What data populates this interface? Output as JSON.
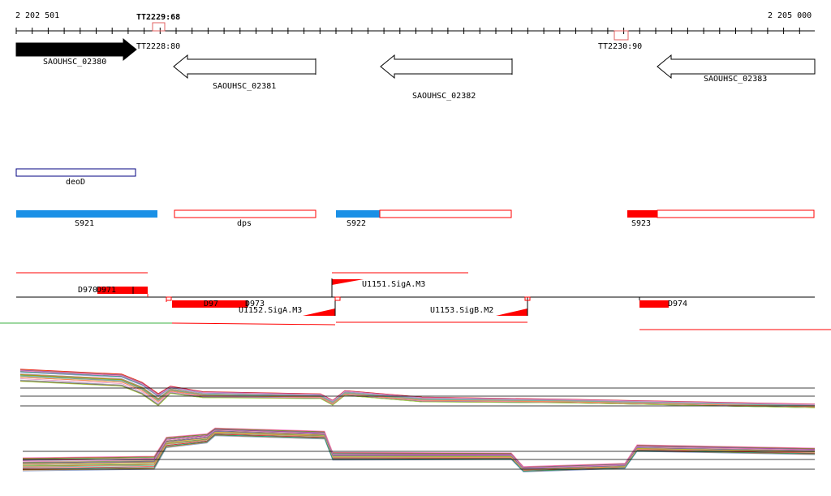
{
  "axis": {
    "start_label": "2 202 501",
    "end_label": "2 205 000"
  },
  "terminators": [
    {
      "id": "tt2229",
      "label": "TT2229:68"
    },
    {
      "id": "tt2228",
      "label": "TT2228:80"
    },
    {
      "id": "tt2230",
      "label": "TT2230:90"
    }
  ],
  "genes": [
    {
      "id": "g02380",
      "label": "SAOUHSC_02380",
      "strand": "+",
      "filled": true
    },
    {
      "id": "g02381",
      "label": "SAOUHSC_02381",
      "strand": "-",
      "filled": false
    },
    {
      "id": "g02382",
      "label": "SAOUHSC_02382",
      "strand": "-",
      "filled": false
    },
    {
      "id": "g02383",
      "label": "SAOUHSC_02383",
      "strand": "-",
      "filled": false
    }
  ],
  "features": [
    {
      "id": "deod",
      "label": "deoD"
    },
    {
      "id": "s921",
      "label": "S921"
    },
    {
      "id": "dps",
      "label": "dps"
    },
    {
      "id": "s922",
      "label": "S922"
    },
    {
      "id": "s923",
      "label": "S923"
    }
  ],
  "promoters": [
    {
      "id": "d970",
      "label": "D970"
    },
    {
      "id": "d971",
      "label": "D971"
    },
    {
      "id": "d972",
      "label": "D97"
    },
    {
      "id": "d973",
      "label": "D973"
    },
    {
      "id": "d974",
      "label": "D974"
    },
    {
      "id": "u1151",
      "label": "U1151.SigA.M3"
    },
    {
      "id": "u1152",
      "label": "U1152.SigA.M3"
    },
    {
      "id": "u1153",
      "label": "U1153.SigB.M2"
    }
  ],
  "colors": {
    "gene_fill": "#000000",
    "feature_blue": "#1a90e6",
    "feature_red": "#ff0000",
    "line_green": "#3cb043",
    "outline_navy": "#000080"
  }
}
